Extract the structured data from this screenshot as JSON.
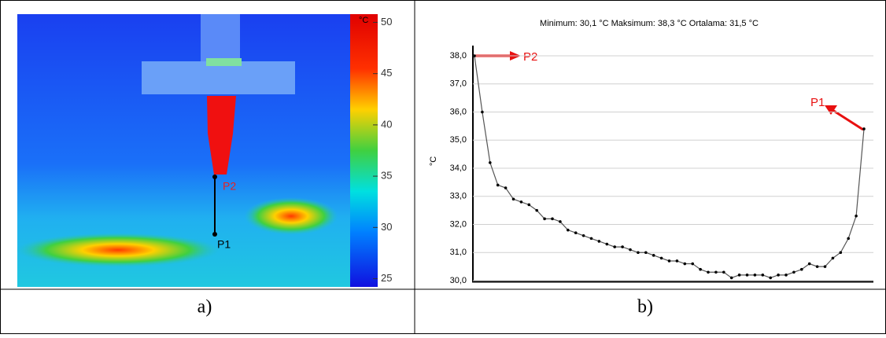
{
  "chart_data": [
    {
      "type": "thermal-image",
      "caption": "a)",
      "colorbar_label": "°C",
      "ylim": [
        24.2,
        50.8
      ],
      "yticks": [
        25,
        30,
        35,
        40,
        45,
        50
      ],
      "point_labels": [
        "P1",
        "P2"
      ]
    },
    {
      "type": "line",
      "caption": "b)",
      "title": "Minimum:  30,1  °C Maksimum:  38,3  °C Ortalama:  31,5  °C",
      "y_label": "°C",
      "color": "#555555",
      "annotations": [
        "P1",
        "P2"
      ],
      "ylim": [
        30,
        38.3
      ],
      "yticks": [
        {
          "value": 30,
          "label": "30,0"
        },
        {
          "value": 31,
          "label": "31,0"
        },
        {
          "value": 32,
          "label": "32,0"
        },
        {
          "value": 33,
          "label": "33,0"
        },
        {
          "value": 34,
          "label": "34,0"
        },
        {
          "value": 35,
          "label": "35,0"
        },
        {
          "value": 36,
          "label": "36,0"
        },
        {
          "value": 37,
          "label": "37,0"
        },
        {
          "value": 38,
          "label": "38,0"
        }
      ],
      "grid": true,
      "values": [
        38.0,
        36.0,
        34.2,
        33.4,
        33.3,
        32.9,
        32.8,
        32.7,
        32.5,
        32.2,
        32.2,
        32.1,
        31.8,
        31.7,
        31.6,
        31.5,
        31.4,
        31.3,
        31.2,
        31.2,
        31.1,
        31.0,
        31.0,
        30.9,
        30.8,
        30.7,
        30.7,
        30.6,
        30.6,
        30.4,
        30.3,
        30.3,
        30.3,
        30.1,
        30.2,
        30.2,
        30.2,
        30.2,
        30.1,
        30.2,
        30.2,
        30.3,
        30.4,
        30.6,
        30.5,
        30.5,
        30.8,
        31.0,
        31.5,
        32.3,
        35.4
      ]
    }
  ]
}
